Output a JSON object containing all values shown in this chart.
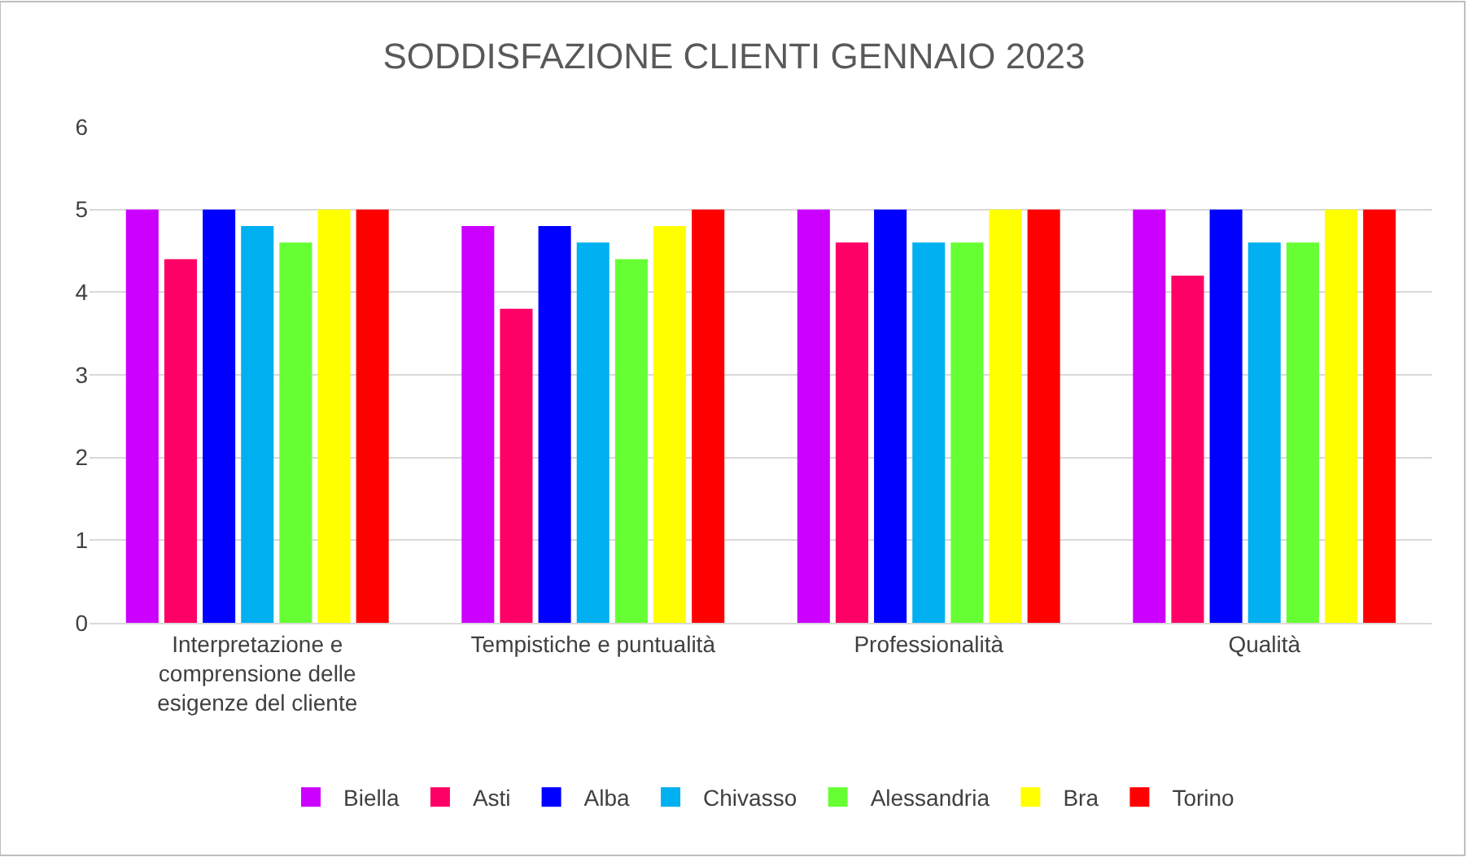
{
  "chart_data": {
    "type": "bar",
    "title": "SODDISFAZIONE CLIENTI GENNAIO 2023",
    "categories": [
      "Interpretazione e comprensione delle esigenze del cliente",
      "Tempistiche e puntualità",
      "Professionalità",
      "Qualità"
    ],
    "series": [
      {
        "name": "Biella",
        "color": "#cc00ff",
        "values": [
          5,
          4.8,
          5,
          5
        ]
      },
      {
        "name": "Asti",
        "color": "#ff0066",
        "values": [
          4.4,
          3.8,
          4.6,
          4.2
        ]
      },
      {
        "name": "Alba",
        "color": "#0000ff",
        "values": [
          5,
          4.8,
          5,
          5
        ]
      },
      {
        "name": "Chivasso",
        "color": "#00b0f0",
        "values": [
          4.8,
          4.6,
          4.6,
          4.6
        ]
      },
      {
        "name": "Alessandria",
        "color": "#66ff33",
        "values": [
          4.6,
          4.4,
          4.6,
          4.6
        ]
      },
      {
        "name": "Bra",
        "color": "#ffff00",
        "values": [
          5,
          4.8,
          5,
          5
        ]
      },
      {
        "name": "Torino",
        "color": "#ff0000",
        "values": [
          5,
          5,
          5,
          5
        ]
      }
    ],
    "ylim": [
      0,
      6
    ],
    "yticks": [
      0,
      1,
      2,
      3,
      4,
      5,
      6
    ],
    "grid": "y",
    "legend": "bottom"
  }
}
